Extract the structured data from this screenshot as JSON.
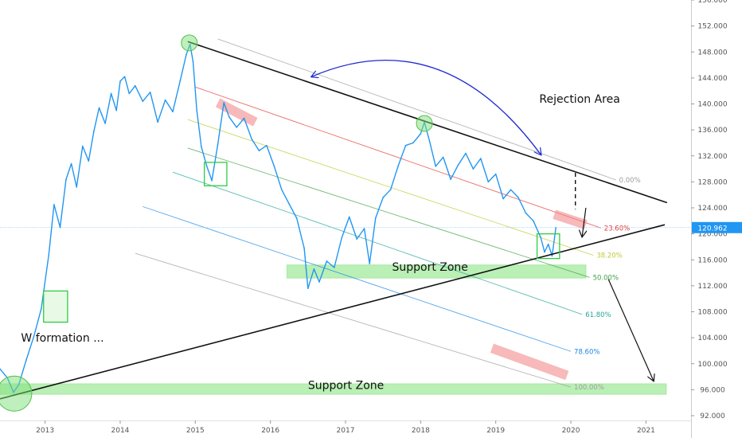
{
  "chart_data": {
    "type": "line",
    "title": "",
    "xlabel": "",
    "ylabel": "",
    "x_ticks": [
      "2013",
      "2014",
      "2015",
      "2016",
      "2017",
      "2018",
      "2019",
      "2020",
      "2021"
    ],
    "y_ticks": [
      "92.000",
      "96.000",
      "100.000",
      "104.000",
      "108.000",
      "112.000",
      "116.000",
      "120.000",
      "124.000",
      "128.000",
      "132.000",
      "136.000",
      "140.000",
      "144.000",
      "148.000",
      "152.000",
      "156.000"
    ],
    "ylim": [
      92,
      156
    ],
    "xlim": [
      2012.4,
      2021.6
    ],
    "last_price": "120.962",
    "last_price_value": 120.962,
    "grid": false,
    "series": [
      {
        "color": "#2196f3",
        "x": [
          2012.4,
          2012.5,
          2012.58,
          2012.65,
          2012.75,
          2012.85,
          2012.95,
          2013.05,
          2013.12,
          2013.2,
          2013.28,
          2013.35,
          2013.42,
          2013.5,
          2013.58,
          2013.65,
          2013.72,
          2013.8,
          2013.88,
          2013.95,
          2014.0,
          2014.06,
          2014.12,
          2014.2,
          2014.3,
          2014.4,
          2014.5,
          2014.6,
          2014.7,
          2014.8,
          2014.88,
          2014.93,
          2014.97,
          2015.02,
          2015.08,
          2015.15,
          2015.22,
          2015.3,
          2015.38,
          2015.45,
          2015.55,
          2015.65,
          2015.75,
          2015.85,
          2015.95,
          2016.05,
          2016.15,
          2016.25,
          2016.35,
          2016.45,
          2016.5,
          2016.58,
          2016.65,
          2016.75,
          2016.85,
          2016.95,
          2017.05,
          2017.15,
          2017.25,
          2017.32,
          2017.4,
          2017.5,
          2017.6,
          2017.7,
          2017.8,
          2017.9,
          2018.0,
          2018.05,
          2018.12,
          2018.2,
          2018.3,
          2018.4,
          2018.5,
          2018.6,
          2018.7,
          2018.8,
          2018.9,
          2019.0,
          2019.1,
          2019.2,
          2019.3,
          2019.4,
          2019.5,
          2019.6,
          2019.65,
          2019.7,
          2019.75,
          2019.8
        ],
        "y": [
          99.2,
          97.8,
          95.6,
          96.8,
          100.6,
          104.2,
          108.5,
          116.8,
          124.5,
          121.0,
          128.4,
          130.8,
          127.2,
          133.5,
          131.2,
          135.8,
          139.4,
          137.0,
          141.6,
          139.0,
          143.5,
          144.2,
          141.6,
          142.8,
          140.4,
          141.8,
          137.2,
          140.6,
          138.8,
          143.6,
          147.6,
          149.2,
          146.5,
          139.0,
          133.4,
          130.5,
          128.2,
          133.8,
          140.2,
          138.0,
          136.4,
          137.8,
          134.6,
          132.8,
          133.6,
          130.4,
          126.8,
          124.6,
          122.4,
          117.8,
          111.6,
          114.6,
          112.6,
          115.8,
          114.8,
          119.4,
          122.6,
          119.2,
          120.8,
          115.4,
          122.4,
          125.6,
          126.8,
          130.4,
          133.6,
          134.0,
          135.4,
          137.2,
          134.2,
          130.4,
          131.8,
          128.4,
          130.6,
          132.4,
          130.0,
          131.6,
          128.0,
          129.2,
          125.4,
          126.8,
          125.6,
          123.2,
          122.0,
          119.4,
          117.2,
          118.4,
          116.6,
          120.96
        ]
      }
    ],
    "trendlines": [
      {
        "name": "resistance",
        "x": [
          2014.9,
          2021.28
        ],
        "y": [
          149.6,
          124.8
        ],
        "color": "#111111"
      },
      {
        "name": "support",
        "x": [
          2012.4,
          2021.25
        ],
        "y": [
          94.6,
          121.4
        ],
        "color": "#111111"
      },
      {
        "name": "rejection-guide",
        "x": [
          2020.06,
          2020.06
        ],
        "y": [
          129.4,
          123.8
        ],
        "color": "#111111",
        "dashed": true
      }
    ],
    "fib_lines": [
      {
        "label": "0.00%",
        "x": [
          2015.3,
          2020.6
        ],
        "y": [
          150.0,
          128.3
        ],
        "color": "#9e9e9e"
      },
      {
        "label": "23.60%",
        "x": [
          2015.0,
          2020.4
        ],
        "y": [
          142.6,
          120.9
        ],
        "color": "#e53935"
      },
      {
        "label": "38.20%",
        "x": [
          2014.9,
          2020.3
        ],
        "y": [
          137.6,
          116.7
        ],
        "color": "#c0ca33"
      },
      {
        "label": "50.00%",
        "x": [
          2014.9,
          2020.25
        ],
        "y": [
          133.2,
          113.3
        ],
        "color": "#43a047"
      },
      {
        "label": "61.80%",
        "x": [
          2014.7,
          2020.15
        ],
        "y": [
          129.5,
          107.6
        ],
        "color": "#26a69a"
      },
      {
        "label": "78.60%",
        "x": [
          2014.3,
          2020.0
        ],
        "y": [
          124.2,
          101.9
        ],
        "color": "#1e88e5"
      },
      {
        "label": "100.00%",
        "x": [
          2014.2,
          2020.0
        ],
        "y": [
          117.0,
          96.4
        ],
        "color": "#9e9e9e"
      }
    ],
    "zones": [
      {
        "label": "Support Zone",
        "x": [
          2016.22,
          2020.2
        ],
        "y": [
          113.2,
          115.2
        ],
        "color": "#81e27a"
      },
      {
        "label": "Support Zone",
        "x": [
          2012.4,
          2021.27
        ],
        "y": [
          95.3,
          96.9
        ],
        "color": "#81e27a"
      }
    ],
    "red_highlights": [
      {
        "x": [
          2015.3,
          2015.8
        ],
        "y": [
          140.2,
          137.2
        ]
      },
      {
        "x": [
          2019.78,
          2020.2
        ],
        "y": [
          123.0,
          121.4
        ]
      },
      {
        "x": [
          2018.95,
          2019.95
        ],
        "y": [
          102.4,
          98.2
        ]
      }
    ],
    "boxes": [
      {
        "x": [
          2015.12,
          2015.42
        ],
        "y": [
          131.0,
          127.4
        ],
        "fill": false
      },
      {
        "x": [
          2019.55,
          2019.85
        ],
        "y": [
          120.0,
          116.2
        ],
        "fill": false
      },
      {
        "x": [
          2012.98,
          2013.3
        ],
        "y": [
          111.2,
          106.4
        ],
        "fill": true
      }
    ],
    "circles": [
      {
        "x": 2012.59,
        "y": 95.4,
        "r": 22
      },
      {
        "x": 2014.92,
        "y": 149.4,
        "r": 10
      },
      {
        "x": 2018.05,
        "y": 137.0,
        "r": 10
      }
    ],
    "annotations": [
      {
        "text": "Rejection Area",
        "x": 2019.58,
        "y": 140.2,
        "size": 14
      },
      {
        "text": "W formation ...",
        "x": 2012.68,
        "y": 103.4,
        "size": 14
      },
      {
        "text": "Support Zone",
        "x": 2017.62,
        "y": 114.3,
        "size": 14
      },
      {
        "text": "Support Zone",
        "x": 2016.5,
        "y": 96.1,
        "size": 14
      }
    ],
    "arrows": [
      {
        "name": "curved-arrow",
        "from": [
          2019.6,
          132.2
        ],
        "to": [
          2016.55,
          144.2
        ],
        "color": "#1e2bd1"
      },
      {
        "name": "down-arrow-1",
        "from": [
          2020.2,
          124.0
        ],
        "to": [
          2020.15,
          119.6
        ],
        "color": "#111111"
      },
      {
        "name": "down-arrow-2",
        "from": [
          2020.5,
          113.0
        ],
        "to": [
          2021.1,
          97.4
        ],
        "color": "#111111"
      }
    ]
  }
}
